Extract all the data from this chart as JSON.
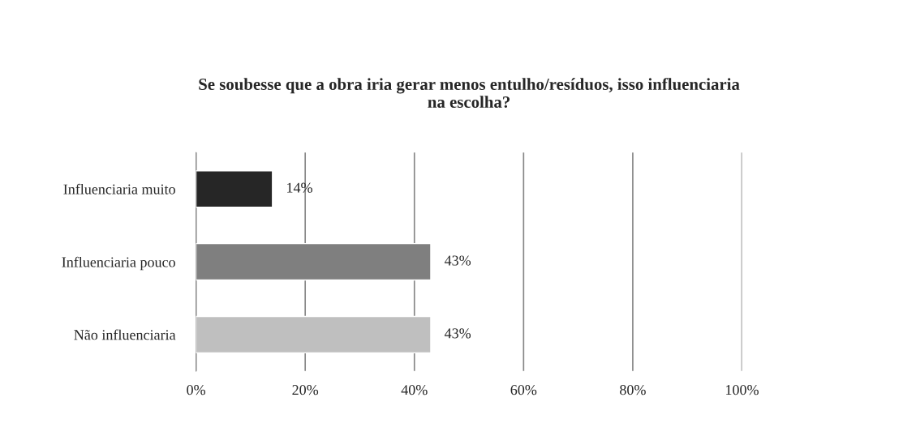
{
  "chart_data": {
    "type": "bar",
    "orientation": "horizontal",
    "title": "Se soubesse que a obra iria gerar menos entulho/resíduos, isso influenciaria\nna escolha?",
    "categories": [
      "Influenciaria muito",
      "Influenciaria pouco",
      "Não influenciaria"
    ],
    "values": [
      14,
      43,
      43
    ],
    "colors": [
      "#262626",
      "#7f7f7f",
      "#bfbfbf"
    ],
    "value_labels": [
      "14%",
      "43%",
      "43%"
    ],
    "xlim": [
      0,
      100
    ],
    "xticks": [
      {
        "value": 0,
        "label": "0%"
      },
      {
        "value": 20,
        "label": "20%"
      },
      {
        "value": 40,
        "label": "40%"
      },
      {
        "value": 60,
        "label": "60%"
      },
      {
        "value": 80,
        "label": "80%"
      },
      {
        "value": 100,
        "label": "100%"
      }
    ],
    "grid": "x",
    "legend": false
  }
}
